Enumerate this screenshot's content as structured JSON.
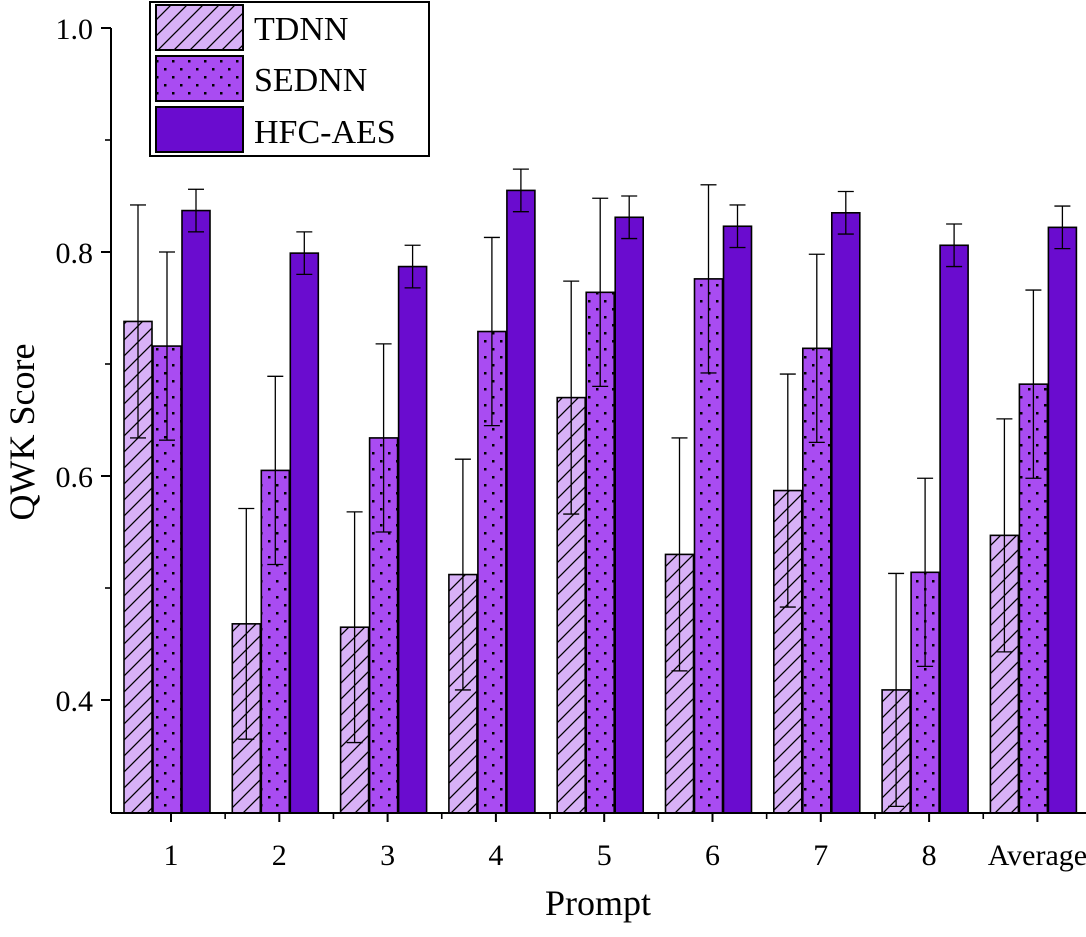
{
  "chart_data": {
    "type": "bar",
    "title": "",
    "xlabel": "Prompt",
    "ylabel": "QWK Score",
    "categories": [
      "1",
      "2",
      "3",
      "4",
      "5",
      "6",
      "7",
      "8",
      "Average"
    ],
    "ylim": [
      0.3,
      1.0
    ],
    "yticks": [
      "0.4",
      "0.6",
      "0.8",
      "1.0"
    ],
    "grid": false,
    "legend_position": "top-left",
    "series": [
      {
        "name": "TDNN",
        "pattern": "hatch",
        "color": "#d8b1f7",
        "values": [
          0.738,
          0.468,
          0.465,
          0.512,
          0.67,
          0.53,
          0.587,
          0.409,
          0.547
        ],
        "errors": [
          0.104,
          0.103,
          0.103,
          0.103,
          0.104,
          0.104,
          0.104,
          0.104,
          0.104
        ]
      },
      {
        "name": "SEDNN",
        "pattern": "dots",
        "color": "#a94cf2",
        "values": [
          0.716,
          0.605,
          0.634,
          0.729,
          0.764,
          0.776,
          0.714,
          0.514,
          0.682
        ],
        "errors": [
          0.084,
          0.084,
          0.084,
          0.084,
          0.084,
          0.084,
          0.084,
          0.084,
          0.084
        ]
      },
      {
        "name": "HFC-AES",
        "pattern": "solid",
        "color": "#6a0ccf",
        "values": [
          0.837,
          0.799,
          0.787,
          0.855,
          0.831,
          0.823,
          0.835,
          0.806,
          0.822
        ],
        "errors": [
          0.019,
          0.019,
          0.019,
          0.019,
          0.019,
          0.019,
          0.019,
          0.019,
          0.019
        ]
      }
    ]
  }
}
